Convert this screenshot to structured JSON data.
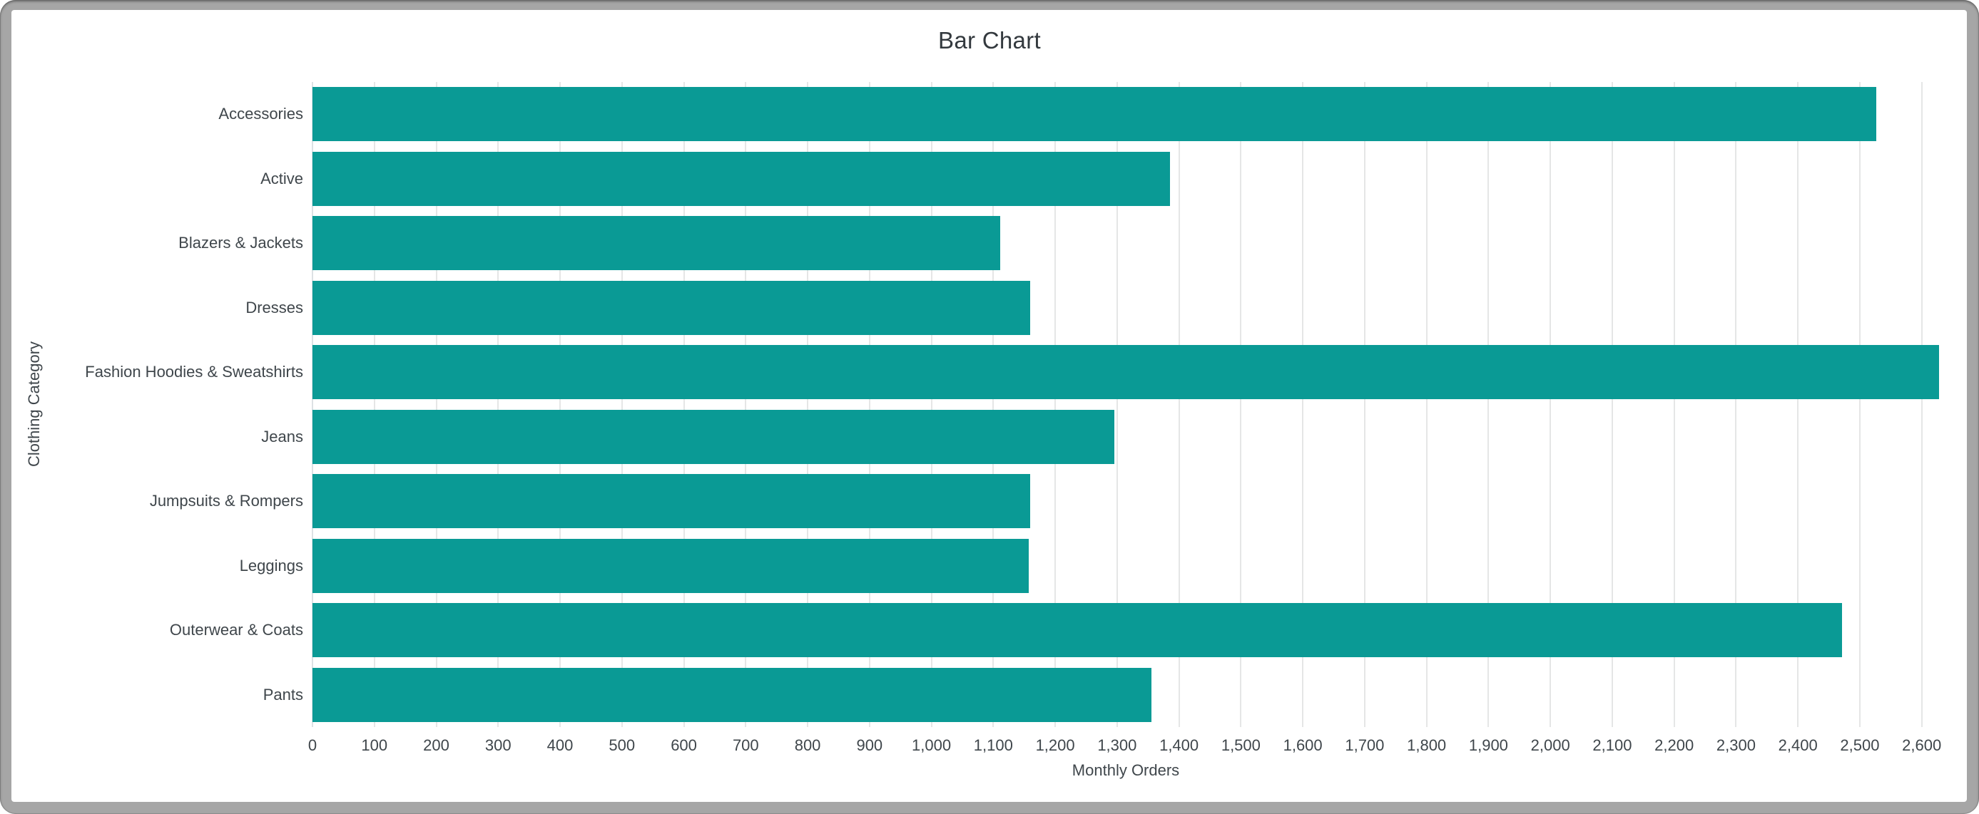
{
  "window": {
    "frame_color": "#a6a6a6",
    "content_background": "#ffffff"
  },
  "chart_data": {
    "type": "bar",
    "orientation": "horizontal",
    "title": "Bar Chart",
    "xlabel": "Monthly Orders",
    "ylabel": "Clothing Category",
    "categories": [
      "Accessories",
      "Active",
      "Blazers & Jackets",
      "Dresses",
      "Fashion Hoodies & Sweatshirts",
      "Jeans",
      "Jumpsuits & Rompers",
      "Leggings",
      "Outerwear & Coats",
      "Pants"
    ],
    "values": [
      2527,
      1386,
      1111,
      1160,
      2628,
      1296,
      1160,
      1157,
      2471,
      1356
    ],
    "xlim": [
      0,
      2628
    ],
    "xtick_step": 100,
    "xtick_labels": [
      "0",
      "100",
      "200",
      "300",
      "400",
      "500",
      "600",
      "700",
      "800",
      "900",
      "1,000",
      "1,100",
      "1,200",
      "1,300",
      "1,400",
      "1,500",
      "1,600",
      "1,700",
      "1,800",
      "1,900",
      "2,000",
      "2,100",
      "2,200",
      "2,300",
      "2,400",
      "2,500",
      "2,600"
    ],
    "grid": true,
    "legend": "none",
    "bar_color": "#0a9a95",
    "grid_color": "#e5e6e6",
    "axis_line_color": "#dce1e4",
    "title_color": "#33393e",
    "text_color": "#3f464b"
  }
}
